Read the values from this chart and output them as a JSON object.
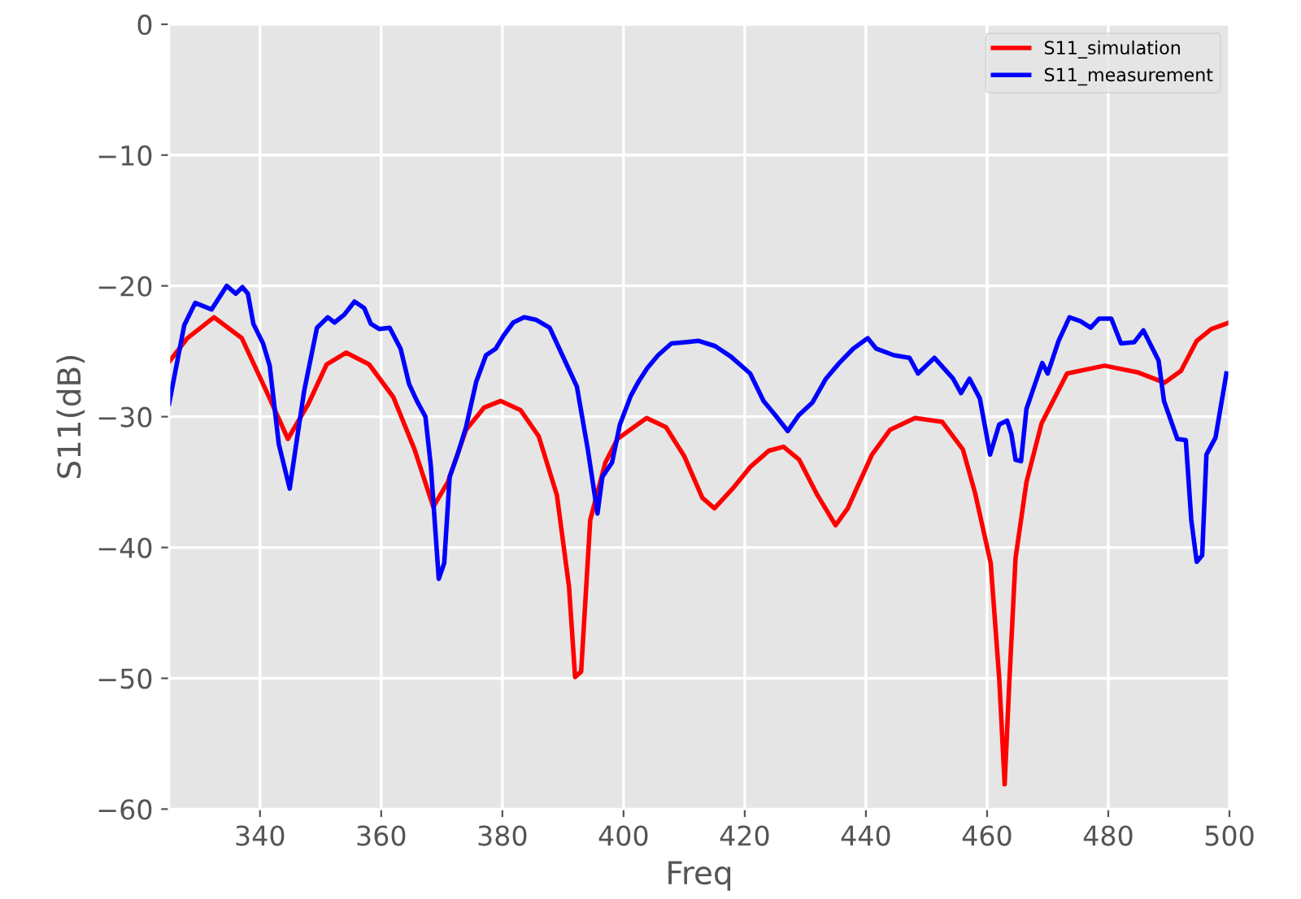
{
  "chart_data": {
    "type": "line",
    "xlabel": "Freq",
    "ylabel": "S11(dB)",
    "xlim": [
      325,
      500
    ],
    "xticks": [
      340,
      360,
      380,
      400,
      420,
      440,
      460,
      480,
      500
    ],
    "ylim": [
      -60,
      0
    ],
    "yticks": [
      -60,
      -50,
      -40,
      -30,
      -20,
      -10,
      0
    ],
    "grid": true,
    "legend": "top right",
    "line_style": "solid",
    "marker": "none",
    "series": [
      {
        "name": "S11_simulation",
        "color": "#ff0000",
        "x": [
          325,
          328,
          332.4,
          337,
          341,
          344.6,
          348,
          351,
          354.2,
          358,
          362,
          365.5,
          368.6,
          371,
          374,
          377,
          379.7,
          383,
          386,
          389,
          391,
          392,
          393,
          394.5,
          397,
          399,
          403.8,
          407,
          410,
          413,
          415,
          418,
          421,
          424,
          426.4,
          429,
          432,
          435,
          437,
          441,
          444,
          448.1,
          452.6,
          456,
          458,
          460.6,
          462,
          462.9,
          463.7,
          464.7,
          466.5,
          469,
          473.2,
          479.4,
          484.8,
          489.3,
          492,
          494.6,
          497,
          500
        ],
        "values": [
          -25.8,
          -24.0,
          -22.4,
          -24.0,
          -28.0,
          -31.7,
          -29.0,
          -26.0,
          -25.1,
          -26.0,
          -28.5,
          -32.5,
          -36.9,
          -35.0,
          -31.0,
          -29.3,
          -28.8,
          -29.5,
          -31.5,
          -36.0,
          -43.0,
          -49.9,
          -49.5,
          -37.9,
          -33.5,
          -31.7,
          -30.1,
          -30.8,
          -33.0,
          -36.2,
          -37.0,
          -35.5,
          -33.8,
          -32.6,
          -32.3,
          -33.3,
          -36.0,
          -38.3,
          -37.0,
          -32.9,
          -31.0,
          -30.1,
          -30.4,
          -32.5,
          -35.8,
          -41.2,
          -50.0,
          -58.1,
          -50.0,
          -40.8,
          -35.0,
          -30.5,
          -26.7,
          -26.1,
          -26.6,
          -27.4,
          -26.5,
          -24.2,
          -23.3,
          -22.8
        ]
      },
      {
        "name": "S11_measurement",
        "color": "#0000ff",
        "x": [
          325,
          327.5,
          329.3,
          332,
          334.5,
          336,
          337.1,
          338,
          338.9,
          340.5,
          341.6,
          343.1,
          344.9,
          346.1,
          347.3,
          349.4,
          351.2,
          352.3,
          353.9,
          355.6,
          357.2,
          358.3,
          359.7,
          361.4,
          363.2,
          364.6,
          365.9,
          367.3,
          368.2,
          369.5,
          370.4,
          371.3,
          372.6,
          374,
          375.7,
          377.3,
          378.9,
          380.2,
          381.8,
          383.6,
          385.6,
          387.8,
          390.1,
          392.3,
          394.1,
          395.7,
          396.5,
          398.1,
          399.4,
          401.2,
          402.5,
          403.9,
          405.7,
          407.9,
          410.2,
          412.4,
          415.1,
          417.7,
          420.9,
          423.1,
          424.9,
          427.1,
          428.9,
          431.2,
          433.4,
          435.6,
          437.9,
          440.3,
          441.7,
          444.6,
          447.2,
          448.6,
          451.3,
          454.4,
          455.7,
          457.1,
          458.8,
          460.5,
          462,
          463.3,
          464,
          464.7,
          465.6,
          466.5,
          469.1,
          470,
          471.8,
          473.6,
          475.4,
          477.1,
          478.5,
          480.5,
          482.1,
          484.3,
          485.8,
          488.3,
          489.2,
          491.4,
          492.8,
          493.7,
          494.6,
          495.5,
          496.2,
          497.7,
          499.5
        ],
        "values": [
          -29.0,
          -23.0,
          -21.3,
          -21.8,
          -20.0,
          -20.6,
          -20.1,
          -20.6,
          -22.9,
          -24.4,
          -26.1,
          -32.1,
          -35.5,
          -31.7,
          -28.0,
          -23.2,
          -22.4,
          -22.8,
          -22.2,
          -21.2,
          -21.7,
          -22.9,
          -23.3,
          -23.2,
          -24.8,
          -27.5,
          -28.8,
          -30.0,
          -33.8,
          -42.4,
          -41.2,
          -34.6,
          -32.9,
          -30.8,
          -27.3,
          -25.3,
          -24.8,
          -23.8,
          -22.8,
          -22.4,
          -22.6,
          -23.2,
          -25.5,
          -27.7,
          -32.5,
          -37.4,
          -34.6,
          -33.5,
          -30.6,
          -28.4,
          -27.3,
          -26.3,
          -25.3,
          -24.4,
          -24.3,
          -24.2,
          -24.6,
          -25.4,
          -26.7,
          -28.8,
          -29.8,
          -31.1,
          -29.9,
          -28.9,
          -27.1,
          -25.9,
          -24.8,
          -24.0,
          -24.8,
          -25.3,
          -25.5,
          -26.7,
          -25.5,
          -27.1,
          -28.2,
          -27.1,
          -28.6,
          -32.9,
          -30.6,
          -30.3,
          -31.3,
          -33.3,
          -33.4,
          -29.4,
          -25.9,
          -26.7,
          -24.2,
          -22.4,
          -22.7,
          -23.2,
          -22.5,
          -22.5,
          -24.4,
          -24.3,
          -23.4,
          -25.7,
          -28.8,
          -31.7,
          -31.8,
          -37.9,
          -41.1,
          -40.6,
          -32.9,
          -31.6,
          -26.7
        ]
      }
    ]
  }
}
